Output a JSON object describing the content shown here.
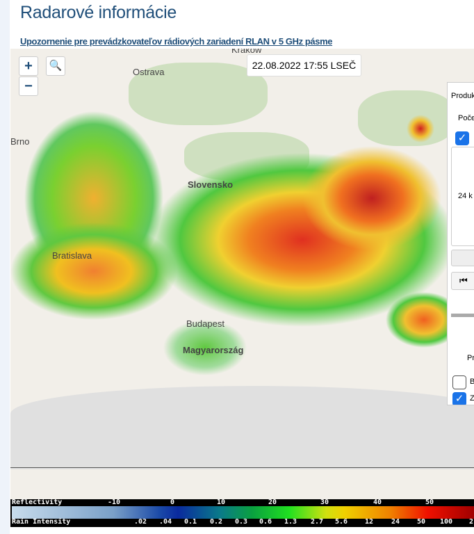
{
  "page": {
    "title": "Radarové informácie",
    "notice_link": "Upozornenie pre prevádzkovateľov rádiových zariadení RLAN v 5 GHz pásme"
  },
  "map": {
    "timestamp": "22.08.2022 17:55 LSEČ",
    "zoom_in": "+",
    "zoom_out": "−",
    "search_icon": "magnifier-icon",
    "labels": {
      "krakow": "Kraków",
      "ostrava": "Ostrava",
      "brno": "Brno",
      "slovensko": "Slovensko",
      "bratislava": "Bratislava",
      "budapest": "Budapest",
      "magyarorszag": "Magyarország"
    }
  },
  "panel": {
    "product": "Produkt",
    "start": "Počet",
    "duration": "24 k",
    "presets": "Pr",
    "option_b": "B",
    "option_z": "Z",
    "checked_top": true,
    "checked_b": false,
    "checked_z": true
  },
  "legend": {
    "reflectivity_label": "Reflectivity",
    "reflectivity_ticks": [
      "-10",
      "0",
      "10",
      "20",
      "30",
      "40",
      "50"
    ],
    "rain_label": "Rain Intensity",
    "rain_ticks": [
      ".02",
      ".04",
      "0.1",
      "0.2",
      "0.3",
      "0.6",
      "1.3",
      "2.7",
      "5.6",
      "12",
      "24",
      "50",
      "100",
      "2"
    ]
  }
}
